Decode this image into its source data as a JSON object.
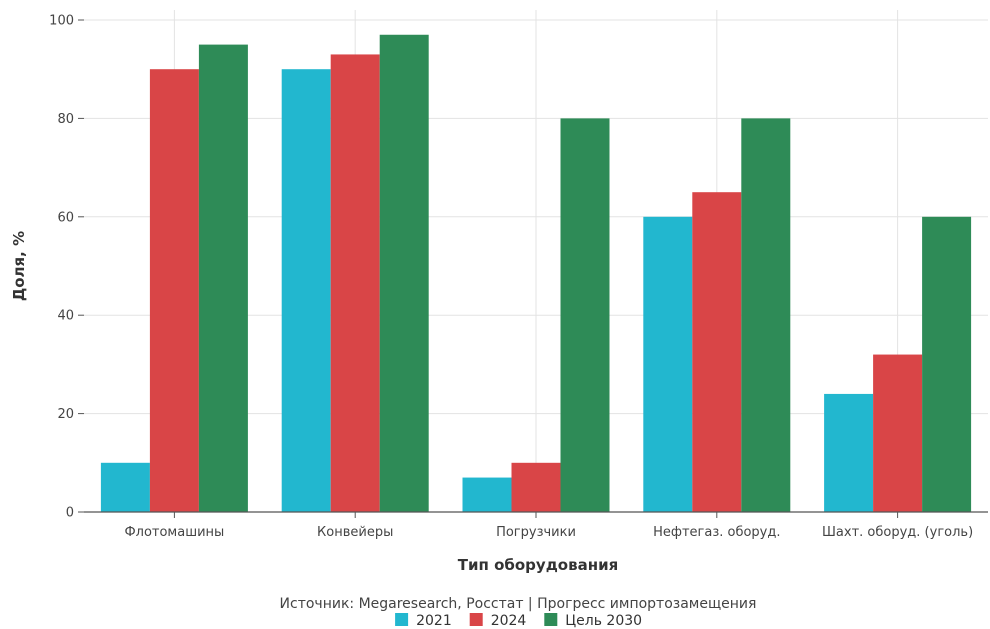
{
  "chart_data": {
    "type": "bar",
    "categories": [
      "Флотомашины",
      "Конвейеры",
      "Погрузчики",
      "Нефтегаз. оборуд.",
      "Шахт. оборуд. (уголь)"
    ],
    "series": [
      {
        "name": "2021",
        "values": [
          10,
          90,
          7,
          60,
          24
        ],
        "color": "#22b7cf"
      },
      {
        "name": "2024",
        "values": [
          90,
          93,
          10,
          65,
          32
        ],
        "color": "#d94547"
      },
      {
        "name": "Цель 2030",
        "values": [
          95,
          97,
          80,
          80,
          60
        ],
        "color": "#2e8b57"
      }
    ],
    "xlabel": "Тип оборудования",
    "ylabel": "Доля, %",
    "ylim": [
      0,
      100
    ],
    "yticks": [
      0,
      20,
      40,
      60,
      80,
      100
    ],
    "grid": true,
    "legend_position": "bottom",
    "caption": "Источник: Megaresearch, Росстат | Прогресс импортозамещения"
  }
}
